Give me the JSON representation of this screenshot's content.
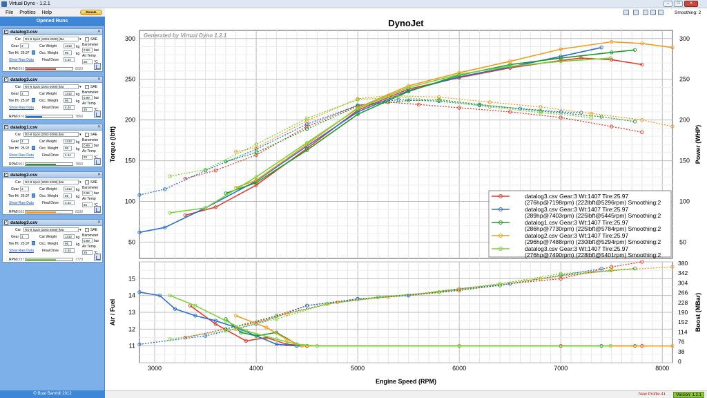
{
  "window": {
    "title": "Virtual Dyno - 1.2.1"
  },
  "menu": {
    "items": [
      "File",
      "Profiles",
      "Help"
    ],
    "donate": "Donate"
  },
  "sidebar": {
    "header": "Opened Runs",
    "copyright": "© Brad Barnhill 2012",
    "runs": [
      {
        "name": "datalog3.csv",
        "car": "RX-8 Sport (2003-2008) [Ma",
        "gear": "3",
        "car_weight": "1312",
        "occ_weight": "95",
        "tire_ht": "25.97",
        "final_drive": "4.44",
        "barometer": "0.99",
        "air_temp": "25",
        "rpm_min": "2892",
        "rpm_max": "8020",
        "color": "#e53a2c",
        "fill": 0.65
      },
      {
        "name": "datalog3.csv",
        "car": "RX-8 Spoit (2003-2008) [Ma",
        "gear": "3",
        "car_weight": "1312",
        "occ_weight": "95",
        "tire_ht": "25.97",
        "final_drive": "4.44",
        "barometer": "0.99",
        "air_temp": "25",
        "rpm_min": "2476",
        "rpm_max": "7860",
        "color": "#2a6fd0",
        "fill": 0.35
      },
      {
        "name": "datalog1.csv",
        "car": "RX-8 Spoit (2003-2008) [Ma",
        "gear": "3",
        "car_weight": "1312",
        "occ_weight": "95",
        "tire_ht": "25.97",
        "final_drive": "4.44",
        "barometer": "0.99",
        "air_temp": "25",
        "rpm_min": "2961",
        "rpm_max": "7860",
        "color": "#1f9a2b",
        "fill": 0.65
      },
      {
        "name": "datalog2.csv",
        "car": "RX-8 Spoit (2003-2008) [Ma",
        "gear": "3",
        "car_weight": "1312",
        "occ_weight": "95",
        "tire_ht": "25.97",
        "final_drive": "4.44",
        "barometer": "0.99",
        "air_temp": "25",
        "rpm_min": "2683",
        "rpm_max": "8330",
        "color": "#f39c1b",
        "fill": 0.65
      },
      {
        "name": "datalog3.csv",
        "car": "RX-8 Spoit (2003-2008) [Ma",
        "gear": "3",
        "car_weight": "1312",
        "occ_weight": "95",
        "tire_ht": "25.97",
        "final_drive": "4.44",
        "barometer": "0.99",
        "air_temp": "25",
        "rpm_min": "2297",
        "rpm_max": "7770",
        "color": "#7ad23a",
        "fill": 0.65
      }
    ],
    "labels": {
      "car": "Car",
      "gear": "Gear",
      "car_weight": "Car Weight",
      "occ_weight": "Occ. Weight",
      "tire_ht": "Tire Ht",
      "final_drive": "Final Drive",
      "sae": "SAE",
      "barometer": "Barometer",
      "bar": "bar",
      "kg": "kg",
      "air_temp": "Air Temp",
      "deg": "°C",
      "show_raw": "Show Raw Data",
      "rpm": "RPM"
    }
  },
  "toolbar": {
    "smoothing": "Smoothing: 2"
  },
  "status": {
    "profile": "New Profile 41",
    "version": "Version: 1.2.1"
  },
  "chart_data": [
    {
      "type": "line",
      "title": "DynoJet",
      "watermark": "Generated by Virtual Dyno 1.2.1",
      "xlabel": "Engine Speed (RPM)",
      "ylabel": "Torque (lbft)",
      "y2label": "Power (WHP)",
      "xlim": [
        2850,
        8100
      ],
      "ylim": [
        30,
        310
      ],
      "x_ticks": [
        "3000",
        "4000",
        "5000",
        "6000",
        "7000",
        "8000"
      ],
      "y_ticks": [
        "50",
        "100",
        "150",
        "200",
        "250",
        "300"
      ],
      "y2_ticks": [
        "50",
        "100",
        "150",
        "200",
        "250",
        "300"
      ],
      "grid": true,
      "legend_position": "bottom-right",
      "legend": [
        {
          "l1": "datalog3.csv Gear:3 Wt:1407 Tire:25.97",
          "l2": "(276hp@7198rpm) (222lbft@5296rpm) Smoothing:2",
          "color": "#e53a2c"
        },
        {
          "l1": "datalog3.csv Gear:3 Wt:1407 Tire:25.97",
          "l2": "(289hp@7403rpm) (225lbft@5445rpm) Smoothing:2",
          "color": "#2a6fd0"
        },
        {
          "l1": "datalog1.csv Gear:3 Wt:1407 Tire:25.97",
          "l2": "(286hp@7730rpm) (225lbft@5784rpm) Smoothing:2",
          "color": "#1f9a2b"
        },
        {
          "l1": "datalog2.csv Gear:3 Wt:1407 Tire:25.97",
          "l2": "(296hp@7488rpm) (230lbft@5294rpm) Smoothing:2",
          "color": "#f39c1b"
        },
        {
          "l1": "datalog3.csv Gear:3 Wt:1407 Tire:25.97",
          "l2": "(276hp@7490rpm) (228lbft@5401rpm) Smoothing:2",
          "color": "#7ad23a"
        }
      ],
      "series": [
        {
          "color": "#e53a2c",
          "power": [
            [
              3300,
              83
            ],
            [
              3600,
              93
            ],
            [
              4000,
              120
            ],
            [
              4500,
              165
            ],
            [
              5000,
              212
            ],
            [
              5500,
              238
            ],
            [
              6000,
              252
            ],
            [
              6500,
              264
            ],
            [
              7000,
              273
            ],
            [
              7200,
              276
            ],
            [
              7500,
              274
            ],
            [
              7800,
              268
            ]
          ],
          "torque": [
            [
              3300,
              128
            ],
            [
              3600,
              138
            ],
            [
              4000,
              157
            ],
            [
              4500,
              192
            ],
            [
              5000,
              218
            ],
            [
              5300,
              222
            ],
            [
              5600,
              219
            ],
            [
              6000,
              215
            ],
            [
              6500,
              210
            ],
            [
              7000,
              203
            ],
            [
              7500,
              192
            ],
            [
              7800,
              185
            ]
          ]
        },
        {
          "color": "#2a6fd0",
          "power": [
            [
              2850,
              62
            ],
            [
              3100,
              68
            ],
            [
              3500,
              92
            ],
            [
              4000,
              125
            ],
            [
              4500,
              168
            ],
            [
              5000,
              210
            ],
            [
              5500,
              236
            ],
            [
              6000,
              253
            ],
            [
              6500,
              265
            ],
            [
              7000,
              278
            ],
            [
              7400,
              289
            ]
          ],
          "torque": [
            [
              2850,
              108
            ],
            [
              3100,
              115
            ],
            [
              3500,
              138
            ],
            [
              4000,
              164
            ],
            [
              4500,
              195
            ],
            [
              5000,
              218
            ],
            [
              5400,
              225
            ],
            [
              5800,
              223
            ],
            [
              6200,
              218
            ],
            [
              6600,
              214
            ],
            [
              7000,
              210
            ],
            [
              7200,
              209
            ]
          ]
        },
        {
          "color": "#1f9a2b",
          "power": [
            [
              3700,
              110
            ],
            [
              4000,
              123
            ],
            [
              4500,
              163
            ],
            [
              5000,
              207
            ],
            [
              5500,
              235
            ],
            [
              6000,
              255
            ],
            [
              6500,
              268
            ],
            [
              7000,
              276
            ],
            [
              7500,
              283
            ],
            [
              7730,
              286
            ]
          ],
          "torque": [
            [
              3700,
              149
            ],
            [
              4000,
              160
            ],
            [
              4500,
              189
            ],
            [
              5000,
              217
            ],
            [
              5500,
              224
            ],
            [
              5800,
              225
            ],
            [
              6200,
              219
            ],
            [
              6800,
              211
            ],
            [
              7400,
              204
            ],
            [
              7730,
              198
            ]
          ]
        },
        {
          "color": "#f39c1b",
          "power": [
            [
              3800,
              117
            ],
            [
              4000,
              126
            ],
            [
              4500,
              170
            ],
            [
              5000,
              215
            ],
            [
              5500,
              242
            ],
            [
              6000,
              258
            ],
            [
              6500,
              272
            ],
            [
              7000,
              287
            ],
            [
              7500,
              296
            ],
            [
              7800,
              294
            ],
            [
              8100,
              289
            ]
          ],
          "torque": [
            [
              3800,
              161
            ],
            [
              4000,
              166
            ],
            [
              4500,
              199
            ],
            [
              5000,
              226
            ],
            [
              5300,
              230
            ],
            [
              5800,
              228
            ],
            [
              6300,
              222
            ],
            [
              6800,
              216
            ],
            [
              7300,
              208
            ],
            [
              7800,
              200
            ],
            [
              8100,
              192
            ]
          ]
        },
        {
          "color": "#7ad23a",
          "power": [
            [
              3150,
              86
            ],
            [
              3500,
              92
            ],
            [
              4000,
              130
            ],
            [
              4500,
              172
            ],
            [
              5000,
              214
            ],
            [
              5500,
              240
            ],
            [
              6000,
              256
            ],
            [
              6500,
              266
            ],
            [
              7000,
              272
            ],
            [
              7490,
              276
            ]
          ],
          "torque": [
            [
              3150,
              131
            ],
            [
              3500,
              139
            ],
            [
              4000,
              170
            ],
            [
              4500,
              202
            ],
            [
              5000,
              225
            ],
            [
              5400,
              228
            ],
            [
              5800,
              224
            ],
            [
              6300,
              216
            ],
            [
              6800,
              209
            ],
            [
              7300,
              203
            ]
          ]
        }
      ]
    },
    {
      "type": "line",
      "xlabel": "Engine Speed (RPM)",
      "ylabel": "Air / Fuel",
      "y2label": "Boost (MBar)",
      "xlim": [
        2850,
        8100
      ],
      "ylim": [
        10,
        16
      ],
      "y_ticks": [
        "11",
        "12",
        "13",
        "14",
        "15"
      ],
      "y2_ticks": [
        "0",
        "38",
        "76",
        "114",
        "152",
        "190",
        "228",
        "266",
        "304",
        "342",
        "380"
      ],
      "x_ticks": [
        "3000",
        "4000",
        "5000",
        "6000",
        "7000",
        "8000"
      ],
      "grid": true,
      "series": [
        {
          "color": "#e53a2c",
          "afr": [
            [
              3350,
              13.4
            ],
            [
              3600,
              12.3
            ],
            [
              3900,
              11.3
            ],
            [
              4100,
              11.5
            ],
            [
              4300,
              11.1
            ],
            [
              4500,
              11.0
            ],
            [
              6000,
              11.0
            ],
            [
              7000,
              11.0
            ],
            [
              7800,
              11.0
            ]
          ],
          "boost": [
            [
              3300,
              11.5
            ],
            [
              4000,
              12.4
            ],
            [
              4500,
              13.4
            ],
            [
              5000,
              13.8
            ],
            [
              5500,
              14.0
            ],
            [
              6000,
              14.3
            ],
            [
              6500,
              14.7
            ],
            [
              7000,
              15.0
            ],
            [
              7500,
              15.7
            ],
            [
              7800,
              16.0
            ]
          ]
        },
        {
          "color": "#2a6fd0",
          "afr": [
            [
              2850,
              14.2
            ],
            [
              3050,
              14.0
            ],
            [
              3200,
              13.2
            ],
            [
              3400,
              12.8
            ],
            [
              3600,
              12.5
            ],
            [
              3800,
              12.1
            ],
            [
              4000,
              11.6
            ],
            [
              4200,
              11.1
            ],
            [
              4400,
              11.0
            ],
            [
              6000,
              11.0
            ],
            [
              7400,
              11.0
            ]
          ],
          "boost": [
            [
              2850,
              11.1
            ],
            [
              3500,
              11.6
            ],
            [
              4000,
              12.3
            ],
            [
              4500,
              13.4
            ],
            [
              5000,
              13.8
            ],
            [
              5500,
              14.0
            ],
            [
              6000,
              14.4
            ],
            [
              6500,
              14.7
            ],
            [
              7000,
              15.2
            ],
            [
              7400,
              15.6
            ]
          ]
        },
        {
          "color": "#1f9a2b",
          "afr": [
            [
              3700,
              12.6
            ],
            [
              3850,
              11.8
            ],
            [
              4000,
              11.6
            ],
            [
              4200,
              11.8
            ],
            [
              4400,
              11.1
            ],
            [
              4500,
              11.0
            ],
            [
              6000,
              11.0
            ],
            [
              7730,
              11.0
            ]
          ],
          "boost": [
            [
              3700,
              12.0
            ],
            [
              4200,
              12.8
            ],
            [
              4700,
              13.5
            ],
            [
              5200,
              13.9
            ],
            [
              5800,
              14.2
            ],
            [
              6400,
              14.6
            ],
            [
              7000,
              15.2
            ],
            [
              7730,
              15.6
            ]
          ]
        },
        {
          "color": "#f39c1b",
          "afr": [
            [
              3800,
              12.8
            ],
            [
              4100,
              12.1
            ],
            [
              4300,
              11.4
            ],
            [
              4450,
              11.0
            ],
            [
              6000,
              11.0
            ],
            [
              8100,
              11.0
            ]
          ],
          "boost": [
            [
              3800,
              12.0
            ],
            [
              4300,
              12.9
            ],
            [
              4800,
              13.6
            ],
            [
              5300,
              13.9
            ],
            [
              6000,
              14.4
            ],
            [
              6800,
              15.0
            ],
            [
              7500,
              15.5
            ],
            [
              8100,
              15.7
            ]
          ]
        },
        {
          "color": "#7ad23a",
          "afr": [
            [
              3150,
              14.0
            ],
            [
              3400,
              13.4
            ],
            [
              3700,
              12.5
            ],
            [
              3900,
              11.9
            ],
            [
              4200,
              11.4
            ],
            [
              4400,
              11.1
            ],
            [
              4600,
              11.0
            ],
            [
              6000,
              11.0
            ],
            [
              7490,
              11.0
            ]
          ],
          "boost": [
            [
              3150,
              11.4
            ],
            [
              3700,
              11.9
            ],
            [
              4200,
              12.6
            ],
            [
              4700,
              13.5
            ],
            [
              5200,
              13.9
            ],
            [
              5800,
              14.2
            ],
            [
              6400,
              14.7
            ],
            [
              7000,
              15.3
            ],
            [
              7490,
              15.5
            ]
          ]
        }
      ]
    }
  ]
}
